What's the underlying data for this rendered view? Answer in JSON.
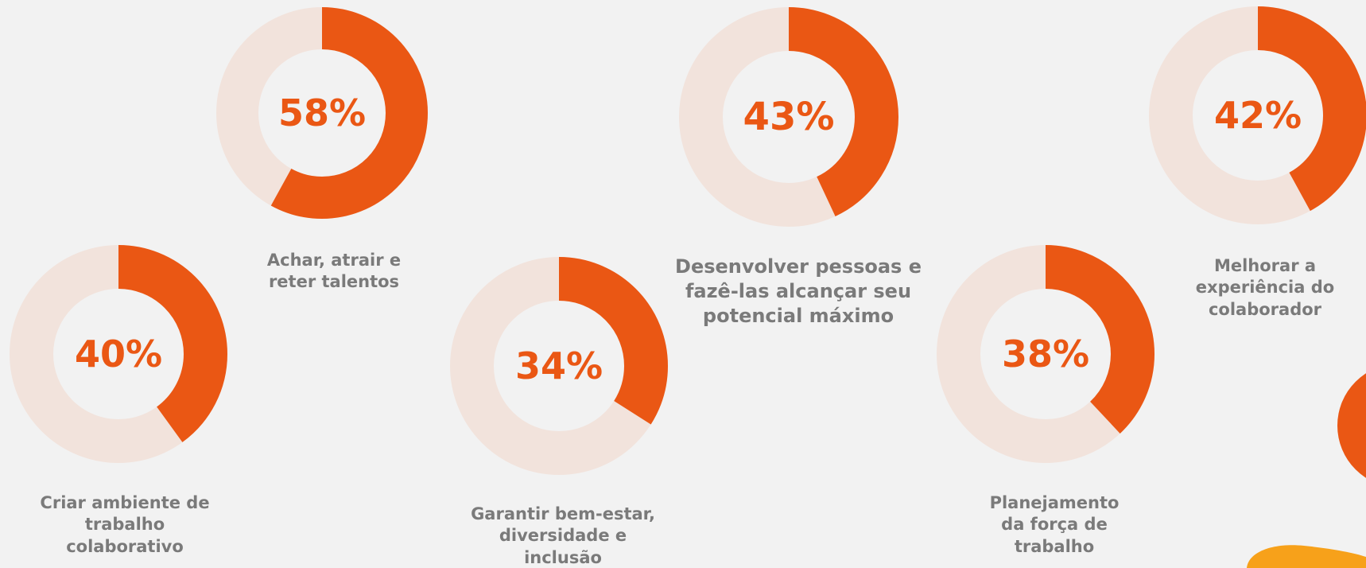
{
  "colors": {
    "background": "#f2f2f2",
    "ring_filled": "#ea5714",
    "ring_track": "#f2e3dc",
    "percent_text": "#ea5714",
    "caption_text": "#7a7a7a",
    "decor_orange": "#ea5714",
    "decor_yellow": "#f7a11a"
  },
  "chart_data": [
    {
      "type": "pie",
      "value_percent": 58,
      "label": "58%",
      "caption": [
        "Achar, atrair e",
        "reter talentos"
      ]
    },
    {
      "type": "pie",
      "value_percent": 43,
      "label": "43%",
      "caption": [
        "Desenvolver pessoas e",
        "fazê-las alcançar seu",
        "potencial máximo"
      ]
    },
    {
      "type": "pie",
      "value_percent": 42,
      "label": "42%",
      "caption": [
        "Melhorar a",
        "experiência do",
        "colaborador"
      ]
    },
    {
      "type": "pie",
      "value_percent": 40,
      "label": "40%",
      "caption": [
        "Criar ambiente de",
        "trabalho",
        "colaborativo"
      ]
    },
    {
      "type": "pie",
      "value_percent": 34,
      "label": "34%",
      "caption": [
        "Garantir bem-estar,",
        "diversidade e",
        "inclusão"
      ]
    },
    {
      "type": "pie",
      "value_percent": 38,
      "label": "38%",
      "caption": [
        "Planejamento",
        "da força de",
        "trabalho"
      ]
    }
  ]
}
